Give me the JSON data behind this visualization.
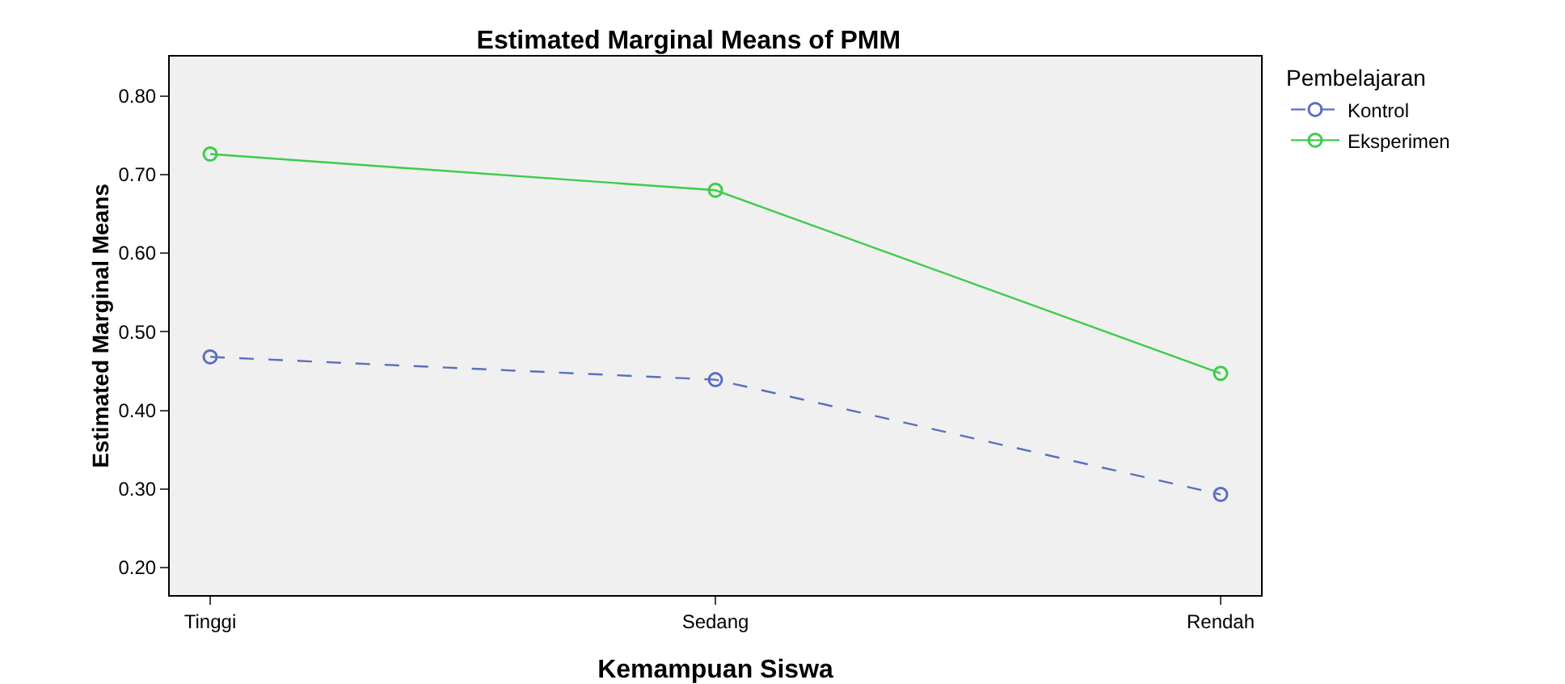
{
  "chart_data": {
    "type": "line",
    "title": "Estimated Marginal Means of PMM",
    "xlabel": "Kemampuan Siswa",
    "ylabel": "Estimated Marginal Means",
    "legend_title": "Pembelajaran",
    "categories": [
      "Tinggi",
      "Sedang",
      "Rendah"
    ],
    "series": [
      {
        "name": "Kontrol",
        "color": "#5a6fbf",
        "line_style": "dashed",
        "values": [
          0.468,
          0.439,
          0.293
        ]
      },
      {
        "name": "Eksperimen",
        "color": "#3dcc4a",
        "line_style": "solid",
        "values": [
          0.726,
          0.68,
          0.447
        ]
      }
    ],
    "ylim": [
      0.165,
      0.85
    ],
    "yticks": [
      {
        "value": 0.2,
        "label": "0.20"
      },
      {
        "value": 0.3,
        "label": "0.30"
      },
      {
        "value": 0.4,
        "label": "0.40"
      },
      {
        "value": 0.5,
        "label": "0.50"
      },
      {
        "value": 0.6,
        "label": "0.60"
      },
      {
        "value": 0.7,
        "label": "0.70"
      },
      {
        "value": 0.8,
        "label": "0.80"
      }
    ],
    "marker": "circle",
    "legend": "top right",
    "grid": false
  }
}
